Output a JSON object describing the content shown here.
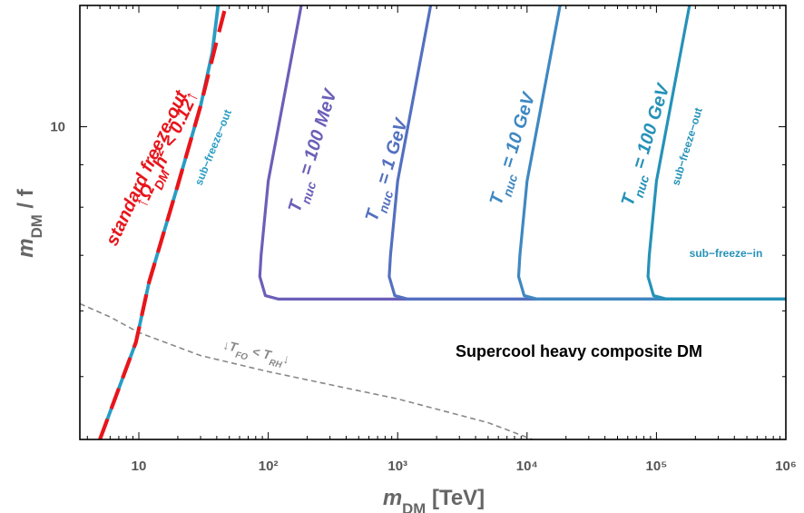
{
  "chart_data": {
    "type": "line",
    "title": "",
    "xlabel": "m_DM [TeV]",
    "ylabel": "m_DM / f",
    "x_scale": "log",
    "y_scale": "log",
    "xlim": [
      3.5,
      1000000
    ],
    "ylim": [
      4.2,
      14
    ],
    "x_ticks": [
      {
        "value": 10,
        "label": "10"
      },
      {
        "value": 100,
        "label": "10²"
      },
      {
        "value": 1000,
        "label": "10³"
      },
      {
        "value": 10000,
        "label": "10⁴"
      },
      {
        "value": 100000,
        "label": "10⁵"
      },
      {
        "value": 1000000,
        "label": "10⁶"
      }
    ],
    "y_ticks": [
      {
        "value": 10,
        "label": "10"
      }
    ],
    "grid": false,
    "legend": "none",
    "series": [
      {
        "key": "standard",
        "color": "#e8151b",
        "style": "dashed",
        "label_parts": [
          "standard freeze-out",
          "↑Ω",
          "DM",
          "h",
          "2",
          " < 0.12↑"
        ],
        "points": [
          [
            5,
            4.2
          ],
          [
            9.5,
            5.5
          ],
          [
            12,
            6.5
          ],
          [
            20,
            8.5
          ],
          [
            30,
            10.6
          ],
          [
            40,
            12.7
          ],
          [
            47,
            14
          ]
        ]
      },
      {
        "key": "sub-fo",
        "color": "#2a9cc4",
        "style": "solid",
        "label": "sub−freeze−out",
        "points": [
          [
            5,
            4.2
          ],
          [
            9.5,
            5.5
          ],
          [
            12,
            6.5
          ],
          [
            20,
            8.5
          ],
          [
            30,
            10.6
          ],
          [
            37,
            12.3
          ],
          [
            41,
            14
          ]
        ]
      },
      {
        "key": "t100mev",
        "color": "#6b5fb8",
        "style": "solid",
        "label": "100 MeV",
        "points": [
          [
            180,
            14
          ],
          [
            100,
            8.6
          ],
          [
            88,
            7.0
          ],
          [
            86,
            6.6
          ],
          [
            95,
            6.26
          ],
          [
            120,
            6.2
          ],
          [
            1000000,
            6.2
          ]
        ]
      },
      {
        "key": "t1gev",
        "color": "#5370c0",
        "style": "solid",
        "label": "1 GeV",
        "points": [
          [
            1800,
            14
          ],
          [
            1000,
            8.6
          ],
          [
            880,
            7.0
          ],
          [
            860,
            6.6
          ],
          [
            950,
            6.26
          ],
          [
            1200,
            6.2
          ],
          [
            1000000,
            6.2
          ]
        ]
      },
      {
        "key": "t10gev",
        "color": "#3f88c2",
        "style": "solid",
        "label": "10 GeV",
        "points": [
          [
            18000,
            14
          ],
          [
            10000,
            8.6
          ],
          [
            8800,
            7.0
          ],
          [
            8600,
            6.6
          ],
          [
            9500,
            6.26
          ],
          [
            12000,
            6.2
          ],
          [
            1000000,
            6.2
          ]
        ]
      },
      {
        "key": "t100gev",
        "color": "#2592b8",
        "style": "solid",
        "label": "100 GeV",
        "points": [
          [
            180000,
            14
          ],
          [
            100000,
            8.6
          ],
          [
            88000,
            7.0
          ],
          [
            86000,
            6.6
          ],
          [
            95000,
            6.26
          ],
          [
            120000,
            6.2
          ],
          [
            1000000,
            6.2
          ]
        ]
      },
      {
        "key": "tfo",
        "color": "#888888",
        "style": "dashed",
        "label_parts": [
          "↓T",
          "FO",
          " < T",
          "RH",
          "↓"
        ],
        "points": [
          [
            3.5,
            6.12
          ],
          [
            6,
            5.9
          ],
          [
            10,
            5.65
          ],
          [
            30,
            5.3
          ],
          [
            100,
            5.07
          ],
          [
            1000,
            4.7
          ],
          [
            5000,
            4.4
          ],
          [
            11000,
            4.2
          ]
        ]
      }
    ],
    "annotations": {
      "tnuc_prefix": "T",
      "tnuc_sub": "nuc",
      "tnuc_eq": " = ",
      "sub_fo_right": "sub−freeze−out",
      "sub_fi": "sub−freeze−in",
      "region": "Supercool heavy composite DM"
    },
    "axis_title_parts": {
      "x_main": "m",
      "x_sub": "DM",
      "x_unit": "[TeV]",
      "y_main": "m",
      "y_sub": "DM",
      "y_rest": " / f"
    }
  }
}
